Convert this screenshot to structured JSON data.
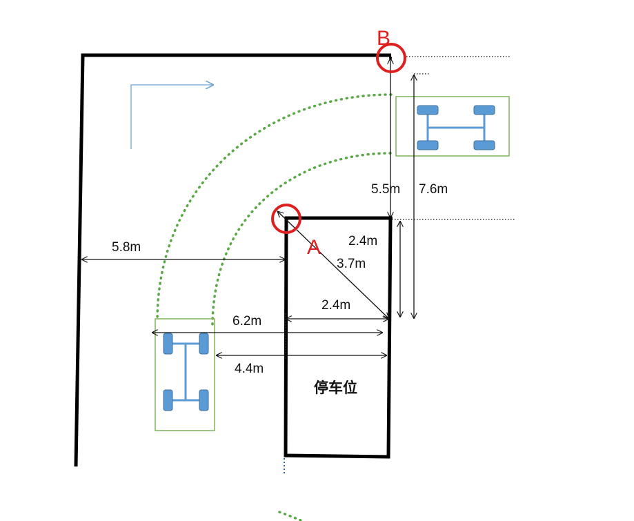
{
  "labels": {
    "point_a": "A",
    "point_b": "B",
    "slot": "停车位",
    "dim_5_5": "5.5m",
    "dim_7_6": "7.6m",
    "dim_2_4_side": "2.4m",
    "dim_3_7": "3.7m",
    "dim_2_4_width": "2.4m",
    "dim_5_8": "5.8m",
    "dim_6_2": "6.2m",
    "dim_4_4": "4.4m"
  },
  "colors": {
    "wall": "#000000",
    "marker": "#dd1f1f",
    "arc": "#5aa845",
    "car_outline": "#7fb15a",
    "wheel": "#5b9bd5",
    "axle": "#5b9bd5",
    "arrow": "#6fa3d4",
    "dimension": "#111111"
  }
}
